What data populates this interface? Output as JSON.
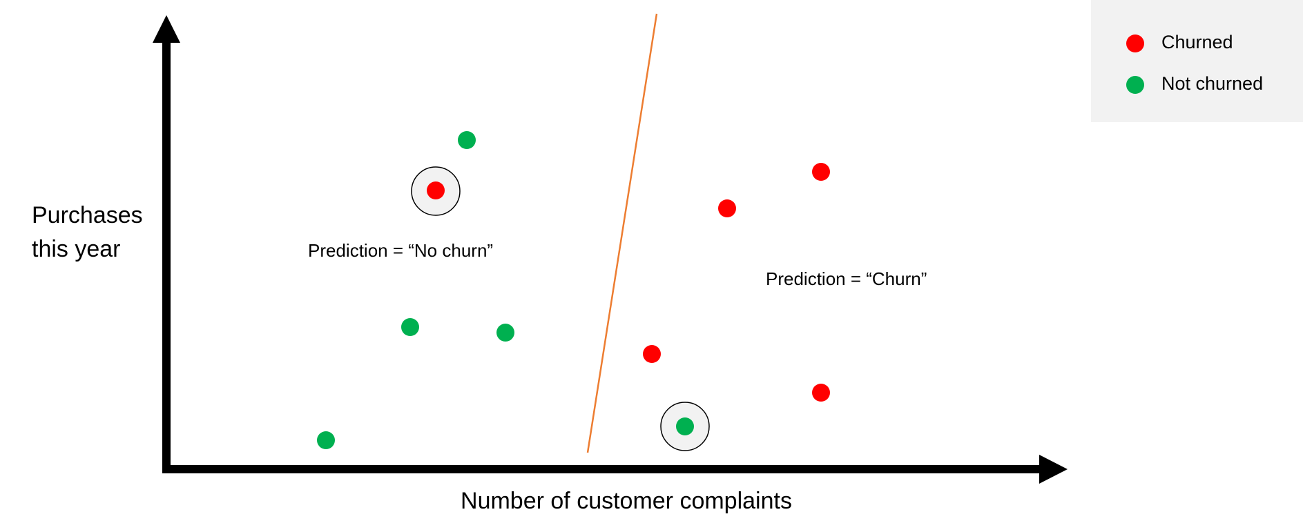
{
  "axes": {
    "x_label": "Number of customer complaints",
    "y_label": [
      "Purchases",
      "this year"
    ]
  },
  "annotations": [
    "Prediction = “No churn”",
    "Prediction = “Churn”"
  ],
  "legend": [
    "Churned",
    "Not churned"
  ]
}
